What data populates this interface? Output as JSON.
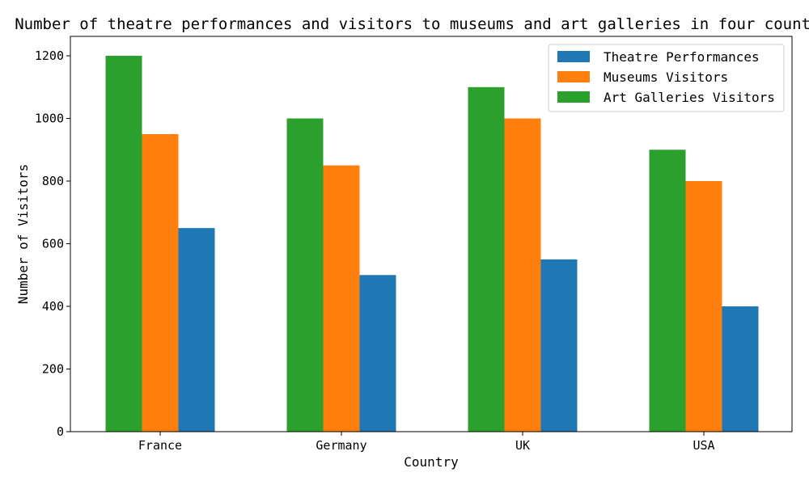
{
  "chart_data": {
    "type": "bar",
    "title": "Number of theatre performances and visitors to museums and art galleries in four countries",
    "xlabel": "Country",
    "ylabel": "Number of Visitors",
    "categories": [
      "France",
      "Germany",
      "UK",
      "USA"
    ],
    "ylim": [
      0,
      1262
    ],
    "yticks": [
      0,
      200,
      400,
      600,
      800,
      1000,
      1200
    ],
    "series": [
      {
        "name": "Art Galleries Visitors",
        "color": "#2ca02c",
        "values": [
          1200,
          1000,
          1100,
          900
        ]
      },
      {
        "name": "Museums Visitors",
        "color": "#ff7f0e",
        "values": [
          950,
          850,
          1000,
          800
        ]
      },
      {
        "name": "Theatre Performances",
        "color": "#1f77b4",
        "values": [
          650,
          500,
          550,
          400
        ]
      }
    ],
    "legend_order": [
      "Theatre Performances",
      "Museums Visitors",
      "Art Galleries Visitors"
    ],
    "legend_position": "upper right",
    "grid": false
  }
}
